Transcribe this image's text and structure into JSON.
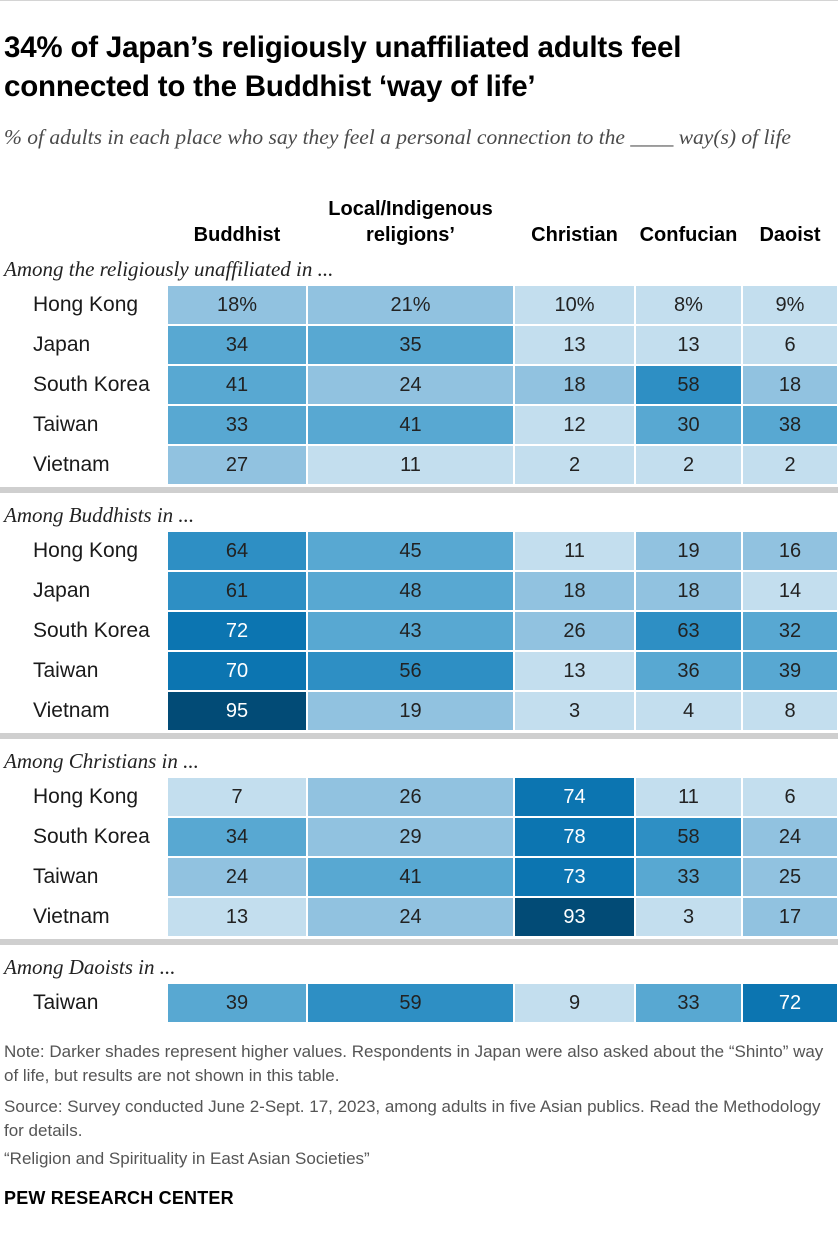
{
  "title": "34% of Japan’s religiously unaffiliated adults feel connected to the Buddhist ‘way of life’",
  "subtitle": "% of adults in each place who say they feel a personal connection to the ____ way(s) of life",
  "chart_data": {
    "type": "table",
    "columns": [
      "Buddhist",
      "Local/Indigenous religions’",
      "Christian",
      "Confucian",
      "Daoist"
    ],
    "groups": [
      {
        "label": "Among the religiously unaffiliated in ...",
        "rows": [
          {
            "place": "Hong Kong",
            "values": [
              18,
              21,
              10,
              8,
              9
            ],
            "display": [
              "18%",
              "21%",
              "10%",
              "8%",
              "9%"
            ]
          },
          {
            "place": "Japan",
            "values": [
              34,
              35,
              13,
              13,
              6
            ],
            "display": [
              "34",
              "35",
              "13",
              "13",
              "6"
            ]
          },
          {
            "place": "South Korea",
            "values": [
              41,
              24,
              18,
              58,
              18
            ],
            "display": [
              "41",
              "24",
              "18",
              "58",
              "18"
            ]
          },
          {
            "place": "Taiwan",
            "values": [
              33,
              41,
              12,
              30,
              38
            ],
            "display": [
              "33",
              "41",
              "12",
              "30",
              "38"
            ]
          },
          {
            "place": "Vietnam",
            "values": [
              27,
              11,
              2,
              2,
              2
            ],
            "display": [
              "27",
              "11",
              "2",
              "2",
              "2"
            ]
          }
        ]
      },
      {
        "label": "Among Buddhists in ...",
        "rows": [
          {
            "place": "Hong Kong",
            "values": [
              64,
              45,
              11,
              19,
              16
            ],
            "display": [
              "64",
              "45",
              "11",
              "19",
              "16"
            ]
          },
          {
            "place": "Japan",
            "values": [
              61,
              48,
              18,
              18,
              14
            ],
            "display": [
              "61",
              "48",
              "18",
              "18",
              "14"
            ]
          },
          {
            "place": "South Korea",
            "values": [
              72,
              43,
              26,
              63,
              32
            ],
            "display": [
              "72",
              "43",
              "26",
              "63",
              "32"
            ]
          },
          {
            "place": "Taiwan",
            "values": [
              70,
              56,
              13,
              36,
              39
            ],
            "display": [
              "70",
              "56",
              "13",
              "36",
              "39"
            ]
          },
          {
            "place": "Vietnam",
            "values": [
              95,
              19,
              3,
              4,
              8
            ],
            "display": [
              "95",
              "19",
              "3",
              "4",
              "8"
            ]
          }
        ]
      },
      {
        "label": "Among Christians in ...",
        "rows": [
          {
            "place": "Hong Kong",
            "values": [
              7,
              26,
              74,
              11,
              6
            ],
            "display": [
              "7",
              "26",
              "74",
              "11",
              "6"
            ]
          },
          {
            "place": "South Korea",
            "values": [
              34,
              29,
              78,
              58,
              24
            ],
            "display": [
              "34",
              "29",
              "78",
              "58",
              "24"
            ]
          },
          {
            "place": "Taiwan",
            "values": [
              24,
              41,
              73,
              33,
              25
            ],
            "display": [
              "24",
              "41",
              "73",
              "33",
              "25"
            ]
          },
          {
            "place": "Vietnam",
            "values": [
              13,
              24,
              93,
              3,
              17
            ],
            "display": [
              "13",
              "24",
              "93",
              "3",
              "17"
            ]
          }
        ]
      },
      {
        "label": "Among Daoists in ...",
        "rows": [
          {
            "place": "Taiwan",
            "values": [
              39,
              59,
              9,
              33,
              72
            ],
            "display": [
              "39",
              "59",
              "9",
              "33",
              "72"
            ]
          }
        ]
      }
    ],
    "color_scale": [
      {
        "max": 14,
        "color": "#c3deee"
      },
      {
        "max": 29,
        "color": "#91c2e0"
      },
      {
        "max": 49,
        "color": "#58a8d2"
      },
      {
        "max": 64,
        "color": "#2e8fc4"
      },
      {
        "max": 79,
        "color": "#0c75b1"
      },
      {
        "max": 100,
        "color": "#024b76"
      }
    ]
  },
  "notes": [
    "Note: Darker shades represent higher values. Respondents in Japan were also asked about the “Shinto” way of life, but results are not shown in this table.",
    "Source: Survey conducted June 2-Sept. 17, 2023, among adults in five Asian publics. Read the Methodology for details.",
    "“Religion and Spirituality in East Asian Societies”"
  ],
  "org": "PEW RESEARCH CENTER"
}
